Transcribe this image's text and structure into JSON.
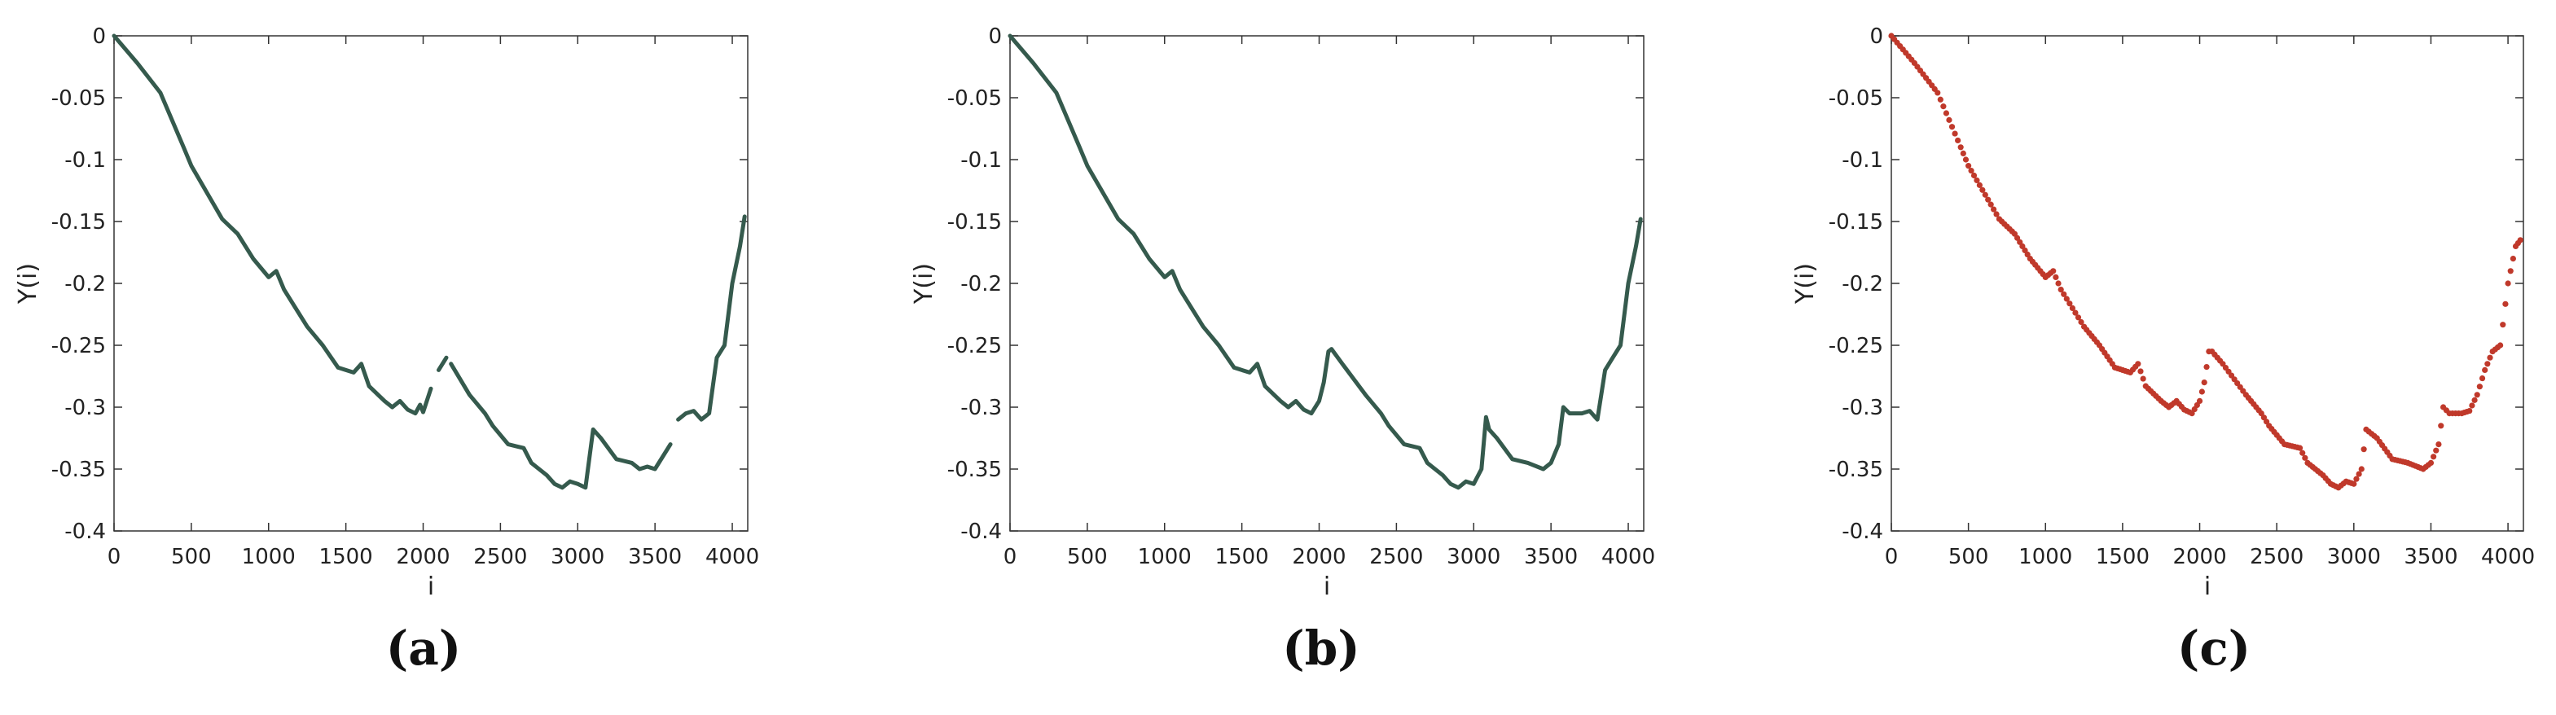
{
  "colors": {
    "green_line": "#355a4d",
    "red_dots": "#c0392b",
    "axis": "#333333"
  },
  "panels": [
    {
      "caption": "(a)"
    },
    {
      "caption": "(b)"
    },
    {
      "caption": "(c)"
    }
  ],
  "chart_data": [
    {
      "type": "line",
      "style": "segmented-line",
      "xlabel": "i",
      "ylabel": "Y(i)",
      "xlim": [
        0,
        4100
      ],
      "ylim": [
        -0.4,
        0
      ],
      "xticks": [
        "0",
        "500",
        "1000",
        "1500",
        "2000",
        "2500",
        "3000",
        "3500",
        "4000"
      ],
      "yticks": [
        "0",
        "-0.05",
        "-0.1",
        "-0.15",
        "-0.2",
        "-0.25",
        "-0.3",
        "-0.35",
        "-0.4"
      ],
      "grid": false,
      "segments": [
        [
          [
            0,
            0
          ],
          [
            150,
            -0.022
          ],
          [
            300,
            -0.046
          ],
          [
            450,
            -0.09
          ],
          [
            500,
            -0.105
          ],
          [
            700,
            -0.148
          ],
          [
            800,
            -0.16
          ],
          [
            900,
            -0.18
          ],
          [
            1000,
            -0.195
          ],
          [
            1050,
            -0.19
          ],
          [
            1100,
            -0.205
          ],
          [
            1250,
            -0.235
          ],
          [
            1350,
            -0.25
          ],
          [
            1450,
            -0.268
          ],
          [
            1550,
            -0.272
          ],
          [
            1600,
            -0.265
          ],
          [
            1650,
            -0.283
          ],
          [
            1750,
            -0.295
          ],
          [
            1800,
            -0.3
          ],
          [
            1850,
            -0.295
          ],
          [
            1900,
            -0.302
          ],
          [
            1950,
            -0.305
          ],
          [
            1980,
            -0.298
          ],
          [
            2000,
            -0.304
          ],
          [
            2050,
            -0.285
          ]
        ],
        [
          [
            2100,
            -0.27
          ],
          [
            2150,
            -0.26
          ]
        ],
        [
          [
            2180,
            -0.265
          ],
          [
            2300,
            -0.29
          ],
          [
            2400,
            -0.305
          ],
          [
            2450,
            -0.315
          ],
          [
            2550,
            -0.33
          ],
          [
            2650,
            -0.333
          ],
          [
            2700,
            -0.345
          ],
          [
            2800,
            -0.355
          ],
          [
            2850,
            -0.362
          ],
          [
            2900,
            -0.365
          ],
          [
            2950,
            -0.36
          ]
        ],
        [
          [
            2950,
            -0.36
          ],
          [
            3000,
            -0.362
          ],
          [
            3050,
            -0.365
          ],
          [
            3100,
            -0.318
          ],
          [
            3150,
            -0.325
          ],
          [
            3250,
            -0.342
          ],
          [
            3350,
            -0.345
          ],
          [
            3400,
            -0.35
          ],
          [
            3450,
            -0.348
          ],
          [
            3500,
            -0.35
          ],
          [
            3600,
            -0.33
          ]
        ],
        [
          [
            3650,
            -0.31
          ],
          [
            3700,
            -0.305
          ],
          [
            3750,
            -0.303
          ],
          [
            3800,
            -0.31
          ],
          [
            3850,
            -0.305
          ],
          [
            3900,
            -0.26
          ],
          [
            3950,
            -0.25
          ],
          [
            4000,
            -0.2
          ],
          [
            4050,
            -0.17
          ],
          [
            4080,
            -0.146
          ]
        ]
      ]
    },
    {
      "type": "line",
      "style": "continuous-line",
      "xlabel": "i",
      "ylabel": "Y(i)",
      "xlim": [
        0,
        4100
      ],
      "ylim": [
        -0.4,
        0
      ],
      "xticks": [
        "0",
        "500",
        "1000",
        "1500",
        "2000",
        "2500",
        "3000",
        "3500",
        "4000"
      ],
      "yticks": [
        "0",
        "-0.05",
        "-0.1",
        "-0.15",
        "-0.2",
        "-0.25",
        "-0.3",
        "-0.35",
        "-0.4"
      ],
      "grid": false,
      "segments": [
        [
          [
            0,
            0
          ],
          [
            150,
            -0.022
          ],
          [
            300,
            -0.046
          ],
          [
            450,
            -0.09
          ],
          [
            500,
            -0.105
          ],
          [
            700,
            -0.148
          ],
          [
            800,
            -0.16
          ],
          [
            900,
            -0.18
          ],
          [
            1000,
            -0.195
          ],
          [
            1050,
            -0.19
          ],
          [
            1100,
            -0.205
          ],
          [
            1250,
            -0.235
          ],
          [
            1350,
            -0.25
          ],
          [
            1450,
            -0.268
          ],
          [
            1550,
            -0.272
          ],
          [
            1600,
            -0.265
          ],
          [
            1650,
            -0.283
          ],
          [
            1750,
            -0.295
          ],
          [
            1800,
            -0.3
          ],
          [
            1850,
            -0.295
          ],
          [
            1900,
            -0.302
          ],
          [
            1950,
            -0.305
          ],
          [
            2000,
            -0.295
          ],
          [
            2030,
            -0.28
          ],
          [
            2060,
            -0.255
          ],
          [
            2080,
            -0.253
          ],
          [
            2150,
            -0.265
          ],
          [
            2300,
            -0.29
          ],
          [
            2400,
            -0.305
          ],
          [
            2450,
            -0.315
          ],
          [
            2550,
            -0.33
          ],
          [
            2650,
            -0.333
          ],
          [
            2700,
            -0.345
          ],
          [
            2800,
            -0.355
          ],
          [
            2850,
            -0.362
          ],
          [
            2900,
            -0.365
          ],
          [
            2950,
            -0.36
          ],
          [
            3000,
            -0.362
          ],
          [
            3050,
            -0.35
          ],
          [
            3080,
            -0.308
          ],
          [
            3100,
            -0.318
          ],
          [
            3150,
            -0.325
          ],
          [
            3250,
            -0.342
          ],
          [
            3350,
            -0.345
          ],
          [
            3450,
            -0.35
          ],
          [
            3500,
            -0.345
          ],
          [
            3550,
            -0.33
          ],
          [
            3580,
            -0.3
          ],
          [
            3620,
            -0.305
          ],
          [
            3700,
            -0.305
          ],
          [
            3750,
            -0.303
          ],
          [
            3800,
            -0.31
          ],
          [
            3850,
            -0.27
          ],
          [
            3900,
            -0.26
          ],
          [
            3950,
            -0.25
          ],
          [
            4000,
            -0.2
          ],
          [
            4050,
            -0.17
          ],
          [
            4080,
            -0.148
          ]
        ]
      ]
    },
    {
      "type": "scatter",
      "style": "dotted-line",
      "xlabel": "i",
      "ylabel": "Y(i)",
      "xlim": [
        0,
        4100
      ],
      "ylim": [
        -0.4,
        0
      ],
      "xticks": [
        "0",
        "500",
        "1000",
        "1500",
        "2000",
        "2500",
        "3000",
        "3500",
        "4000"
      ],
      "yticks": [
        "0",
        "-0.05",
        "-0.1",
        "-0.15",
        "-0.2",
        "-0.25",
        "-0.3",
        "-0.35",
        "-0.4"
      ],
      "grid": false,
      "segments": [
        [
          [
            0,
            0
          ],
          [
            150,
            -0.022
          ],
          [
            300,
            -0.046
          ],
          [
            450,
            -0.09
          ],
          [
            500,
            -0.105
          ],
          [
            700,
            -0.148
          ],
          [
            800,
            -0.16
          ],
          [
            900,
            -0.18
          ],
          [
            1000,
            -0.195
          ],
          [
            1050,
            -0.19
          ],
          [
            1100,
            -0.205
          ],
          [
            1250,
            -0.235
          ],
          [
            1350,
            -0.25
          ],
          [
            1450,
            -0.268
          ],
          [
            1550,
            -0.272
          ],
          [
            1600,
            -0.265
          ],
          [
            1650,
            -0.283
          ],
          [
            1750,
            -0.295
          ],
          [
            1800,
            -0.3
          ],
          [
            1850,
            -0.295
          ],
          [
            1900,
            -0.302
          ],
          [
            1950,
            -0.305
          ],
          [
            2000,
            -0.295
          ],
          [
            2030,
            -0.28
          ],
          [
            2060,
            -0.255
          ],
          [
            2080,
            -0.255
          ],
          [
            2150,
            -0.265
          ],
          [
            2300,
            -0.29
          ],
          [
            2400,
            -0.305
          ],
          [
            2450,
            -0.315
          ],
          [
            2550,
            -0.33
          ],
          [
            2650,
            -0.333
          ],
          [
            2700,
            -0.345
          ],
          [
            2800,
            -0.355
          ],
          [
            2850,
            -0.362
          ],
          [
            2900,
            -0.365
          ],
          [
            2950,
            -0.36
          ],
          [
            3000,
            -0.362
          ],
          [
            3050,
            -0.35
          ],
          [
            3080,
            -0.318
          ],
          [
            3150,
            -0.325
          ],
          [
            3250,
            -0.342
          ],
          [
            3350,
            -0.345
          ],
          [
            3450,
            -0.35
          ],
          [
            3500,
            -0.345
          ],
          [
            3550,
            -0.33
          ],
          [
            3580,
            -0.3
          ],
          [
            3620,
            -0.305
          ],
          [
            3700,
            -0.305
          ],
          [
            3750,
            -0.303
          ],
          [
            3800,
            -0.29
          ],
          [
            3850,
            -0.27
          ],
          [
            3900,
            -0.255
          ],
          [
            3950,
            -0.25
          ],
          [
            4000,
            -0.2
          ],
          [
            4050,
            -0.17
          ],
          [
            4080,
            -0.165
          ]
        ]
      ]
    }
  ]
}
